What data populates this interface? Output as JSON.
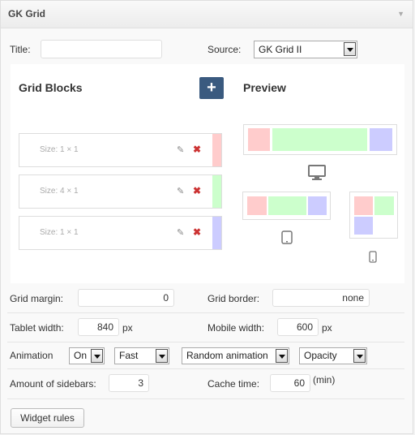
{
  "widget": {
    "title": "GK Grid"
  },
  "form": {
    "title_label": "Title:",
    "title_value": "",
    "source_label": "Source:",
    "source_value": "GK Grid II",
    "grid_margin_label": "Grid margin:",
    "grid_margin_value": "0",
    "grid_border_label": "Grid border:",
    "grid_border_value": "none",
    "tablet_width_label": "Tablet width:",
    "tablet_width_value": "840",
    "tablet_width_unit": "px",
    "mobile_width_label": "Mobile width:",
    "mobile_width_value": "600",
    "mobile_width_unit": "px",
    "animation_label": "Animation",
    "animation_on": "On",
    "animation_speed": "Fast",
    "animation_type": "Random animation",
    "animation_effect": "Opacity",
    "sidebars_label": "Amount of sidebars:",
    "sidebars_value": "3",
    "cache_label": "Cache time:",
    "cache_value": "60",
    "cache_unit": "(min)",
    "widget_rules_label": "Widget rules"
  },
  "grid": {
    "blocks_title": "Grid Blocks",
    "preview_title": "Preview",
    "add_label": "+",
    "blocks": [
      {
        "size": "Size: 1 × 1",
        "color": "#ffcccc"
      },
      {
        "size": "Size: 4 × 1",
        "color": "#ccffcc"
      },
      {
        "size": "Size: 1 × 1",
        "color": "#ccccff"
      }
    ]
  },
  "colors": {
    "red": "#ffcccc",
    "green": "#ccffcc",
    "blue": "#ccccff",
    "accent": "#3a5a7f"
  },
  "icons": {
    "edit": "pencil-icon",
    "delete": "x-icon",
    "desktop": "monitor-icon",
    "tablet": "tablet-icon",
    "mobile": "phone-icon"
  }
}
